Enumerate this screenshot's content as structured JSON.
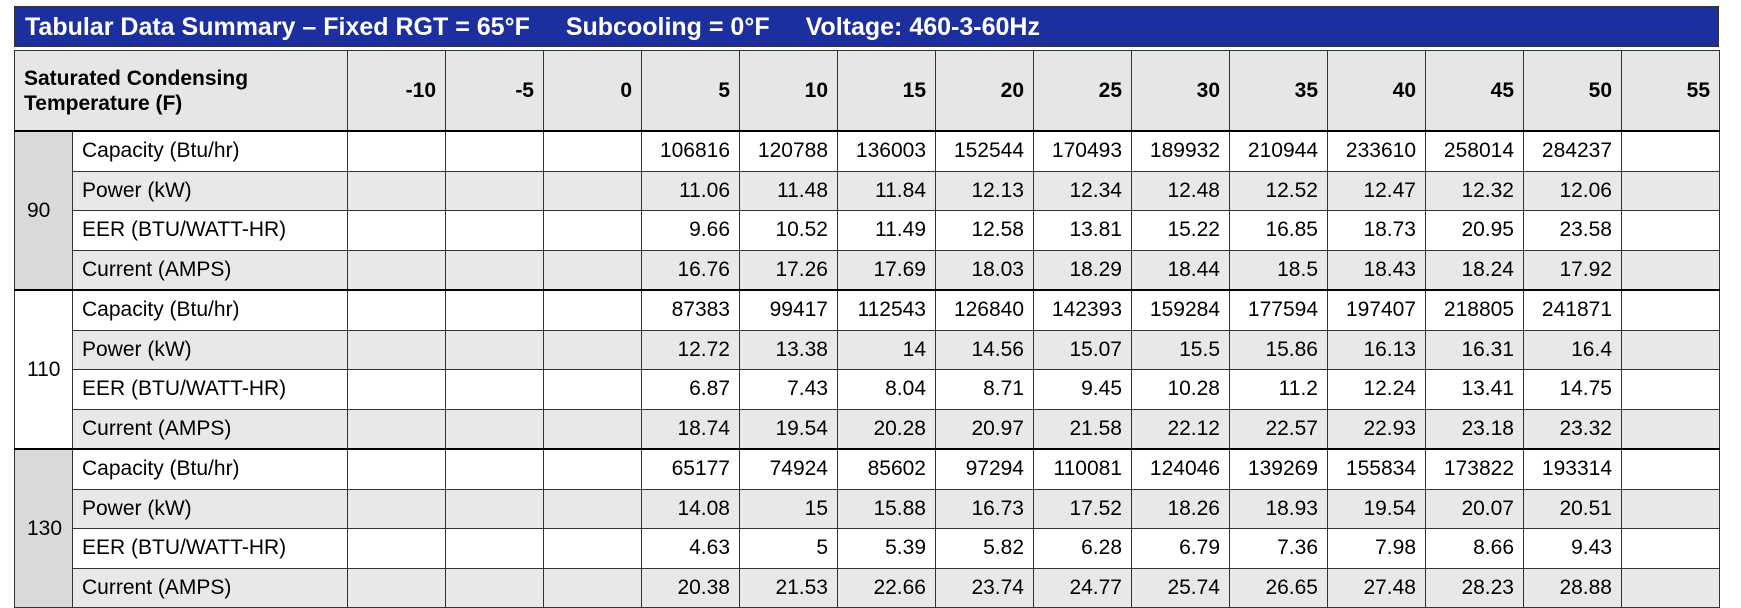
{
  "header": {
    "title": [
      "Tabular Data Summary – Fixed RGT = 65°F",
      "Subcooling = 0°F",
      "Voltage: 460-3-60Hz"
    ]
  },
  "table": {
    "corner": "Saturated Condensing Temperature (F)",
    "columns": [
      -10,
      -5,
      0,
      5,
      10,
      15,
      20,
      25,
      30,
      35,
      40,
      45,
      50,
      55
    ],
    "groups": [
      {
        "label": "90",
        "rows": [
          {
            "label": "Capacity (Btu/hr)",
            "values": [
              null,
              null,
              null,
              106816,
              120788,
              136003,
              152544,
              170493,
              189932,
              210944,
              233610,
              258014,
              284237,
              null
            ]
          },
          {
            "label": "Power (kW)",
            "values": [
              null,
              null,
              null,
              11.06,
              11.48,
              11.84,
              12.13,
              12.34,
              12.48,
              12.52,
              12.47,
              12.32,
              12.06,
              null
            ]
          },
          {
            "label": "EER (BTU/WATT-HR)",
            "values": [
              null,
              null,
              null,
              9.66,
              10.52,
              11.49,
              12.58,
              13.81,
              15.22,
              16.85,
              18.73,
              20.95,
              23.58,
              null
            ]
          },
          {
            "label": "Current (AMPS)",
            "values": [
              null,
              null,
              null,
              16.76,
              17.26,
              17.69,
              18.03,
              18.29,
              18.44,
              18.5,
              18.43,
              18.24,
              17.92,
              null
            ]
          }
        ]
      },
      {
        "label": "110",
        "rows": [
          {
            "label": "Capacity (Btu/hr)",
            "values": [
              null,
              null,
              null,
              87383,
              99417,
              112543,
              126840,
              142393,
              159284,
              177594,
              197407,
              218805,
              241871,
              null
            ]
          },
          {
            "label": "Power (kW)",
            "values": [
              null,
              null,
              null,
              12.72,
              13.38,
              14,
              14.56,
              15.07,
              15.5,
              15.86,
              16.13,
              16.31,
              16.4,
              null
            ]
          },
          {
            "label": "EER (BTU/WATT-HR)",
            "values": [
              null,
              null,
              null,
              6.87,
              7.43,
              8.04,
              8.71,
              9.45,
              10.28,
              11.2,
              12.24,
              13.41,
              14.75,
              null
            ]
          },
          {
            "label": "Current (AMPS)",
            "values": [
              null,
              null,
              null,
              18.74,
              19.54,
              20.28,
              20.97,
              21.58,
              22.12,
              22.57,
              22.93,
              23.18,
              23.32,
              null
            ]
          }
        ]
      },
      {
        "label": "130",
        "rows": [
          {
            "label": "Capacity (Btu/hr)",
            "values": [
              null,
              null,
              null,
              65177,
              74924,
              85602,
              97294,
              110081,
              124046,
              139269,
              155834,
              173822,
              193314,
              null
            ]
          },
          {
            "label": "Power (kW)",
            "values": [
              null,
              null,
              null,
              14.08,
              15,
              15.88,
              16.73,
              17.52,
              18.26,
              18.93,
              19.54,
              20.07,
              20.51,
              null
            ]
          },
          {
            "label": "EER (BTU/WATT-HR)",
            "values": [
              null,
              null,
              null,
              4.63,
              5,
              5.39,
              5.82,
              6.28,
              6.79,
              7.36,
              7.98,
              8.66,
              9.43,
              null
            ]
          },
          {
            "label": "Current (AMPS)",
            "values": [
              null,
              null,
              null,
              20.38,
              21.53,
              22.66,
              23.74,
              24.77,
              25.74,
              26.65,
              27.48,
              28.23,
              28.88,
              null
            ]
          }
        ]
      }
    ]
  }
}
